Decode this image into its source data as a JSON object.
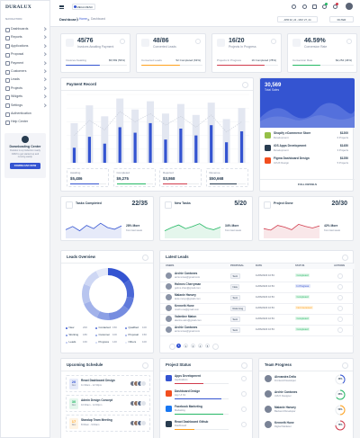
{
  "sidebar": {
    "logo": "DURALUX",
    "section": "NAVIGATION",
    "menu": [
      "Dashboards",
      "Reports",
      "Applications",
      "Proposal",
      "Payment",
      "Customers",
      "Leads",
      "Projects",
      "Widgets",
      "Settings",
      "Authentication",
      "Help Center"
    ],
    "promo": {
      "title": "Downloading Center",
      "text": [
        "Duralux is a production ready",
        "CRM to get started up and",
        "running easily."
      ],
      "button": "DOWNLOAD NOW"
    }
  },
  "header": {
    "menu_label": "MEGA MENU",
    "page": "Dashboard",
    "breadcrumb": [
      "Home",
      "Dashboard"
    ],
    "date_range": "APR 02, 24 - MAY 27, 24",
    "filter": "FILTER"
  },
  "stats": [
    {
      "value": "45/76",
      "label": "Invoices Awaiting Payment",
      "foot": "Invoices Awaiting",
      "amount": "$5,569 (56%)",
      "percent": 56,
      "color": "#3454d1"
    },
    {
      "value": "48/86",
      "label": "Converted Leads",
      "foot": "Converted Leads",
      "amount": "52 Completed (63%)",
      "percent": 63,
      "color": "#ffa21d"
    },
    {
      "value": "16/20",
      "label": "Projects In Progress",
      "foot": "Projects In Progress",
      "amount": "16 Completed (78%)",
      "percent": 78,
      "color": "#d13b4c"
    },
    {
      "value": "46.59%",
      "label": "Conversion Rate",
      "foot": "Conversion Rate",
      "amount": "$2,254 (46%)",
      "percent": 46,
      "color": "#25b865"
    }
  ],
  "payment_record": {
    "title": "Payment Record",
    "ylim": [
      0,
      100
    ],
    "bars": [
      22,
      38,
      28,
      52,
      44,
      58,
      34,
      50,
      40,
      55,
      30,
      46
    ],
    "background_bars": [
      58,
      84,
      68,
      94,
      78,
      90,
      72,
      86,
      70,
      88,
      64,
      80
    ],
    "line": [
      40,
      62,
      48,
      75,
      60,
      72,
      55,
      68,
      52,
      70,
      45,
      60
    ],
    "bar_color": "#3454d1",
    "background_color": "#e3e7f1",
    "line_color": "#c8cdd8",
    "summary": [
      {
        "label": "Awaiting",
        "value": "$5,486",
        "percent": 81,
        "color": "#3454d1"
      },
      {
        "label": "Completed",
        "value": "$9,275",
        "percent": 82,
        "color": "#25b865"
      },
      {
        "label": "Rejected",
        "value": "$3,868",
        "percent": 68,
        "color": "#d13b4c"
      },
      {
        "label": "Revenue",
        "value": "$50,668",
        "percent": 75,
        "color": "#283c50"
      }
    ]
  },
  "total_sales": {
    "value": "30,569",
    "label": "Total Sales",
    "link": "FULL DETAILS",
    "items": [
      {
        "title": "Shopify eCommerce Store",
        "sub": "Development",
        "amount": "$1200",
        "count": "6 Projects",
        "color": "#95bf47"
      },
      {
        "title": "iOS Apps Development",
        "sub": "Development",
        "amount": "$1450",
        "count": "3 Projects",
        "color": "#283c50"
      },
      {
        "title": "Figma Dashboard Design",
        "sub": "UI/UX Design",
        "amount": "$1250",
        "count": "5 Projects",
        "color": "#f24e1e"
      }
    ]
  },
  "progress": {
    "ylim": [
      0,
      100
    ],
    "cards": [
      {
        "title": "Tasks Completed",
        "value": "22/35",
        "change": "28% More",
        "note": "from last week",
        "color": "#3454d1",
        "curve": [
          40,
          55,
          35,
          60,
          45,
          70,
          50,
          42,
          58
        ]
      },
      {
        "title": "New Tasks",
        "value": "5/20",
        "change": "34% More",
        "note": "from last week",
        "color": "#25b865",
        "curve": [
          35,
          50,
          62,
          45,
          55,
          68,
          48,
          40,
          52
        ]
      },
      {
        "title": "Project Done",
        "value": "20/30",
        "change": "42% More",
        "note": "from last week",
        "color": "#d13b4c",
        "curve": [
          45,
          38,
          60,
          52,
          40,
          65,
          55,
          48,
          58
        ]
      }
    ]
  },
  "leads_overview": {
    "title": "Leads Overview",
    "segments": [
      {
        "name": "New",
        "value": 20,
        "value_label": "20K",
        "color": "#3454d1"
      },
      {
        "name": "Contacted",
        "value": 15,
        "value_label": "15K",
        "color": "#4a67d6"
      },
      {
        "name": "Qualified",
        "value": 10,
        "value_label": "10K",
        "color": "#607adb"
      },
      {
        "name": "Working",
        "value": 18,
        "value_label": "18K",
        "color": "#768de0"
      },
      {
        "name": "Customer",
        "value": 10,
        "value_label": "10K",
        "color": "#8ca0e5"
      },
      {
        "name": "Proposal",
        "value": 15,
        "value_label": "15K",
        "color": "#a2b2ea"
      },
      {
        "name": "Leads",
        "value": 16,
        "value_label": "16K",
        "color": "#b8c5ef"
      },
      {
        "name": "Progress",
        "value": 14,
        "value_label": "14K",
        "color": "#ced7f4"
      },
      {
        "name": "Others",
        "value": 10,
        "value_label": "10K",
        "color": "#e4e9f9"
      }
    ]
  },
  "latest_leads": {
    "title": "Latest Leads",
    "columns": [
      "USERS",
      "PROPOSAL",
      "DATE",
      "STATUS",
      "ACTIONS"
    ],
    "pages": [
      1,
      2,
      3,
      4,
      5
    ],
    "rows": [
      {
        "name": "Archie Cantones",
        "email": "arcie.tones@gmail.com",
        "proposal": "Sent",
        "date": "11/06/2023 10:53",
        "status": "Completed",
        "status_color": "#25b865"
      },
      {
        "name": "Holmes Cherryman",
        "email": "golms.chan@gmail.com",
        "proposal": "New",
        "date": "11/06/2023 10:53",
        "status": "In Progress",
        "status_color": "#3454d1"
      },
      {
        "name": "Malanie Hanvey",
        "email": "lanie.nveyn@gmail.com",
        "proposal": "Sent",
        "date": "11/06/2023 10:53",
        "status": "Completed",
        "status_color": "#25b865"
      },
      {
        "name": "Kenneth Hune",
        "email": "nneth.une@gmail.com",
        "proposal": "Returning",
        "date": "11/06/2023 10:53",
        "status": "Not Interested",
        "status_color": "#ffa21d"
      },
      {
        "name": "Valentine Maton",
        "email": "alenine.aton@gmail.com",
        "proposal": "Sent",
        "date": "11/06/2023 10:53",
        "status": "Completed",
        "status_color": "#25b865"
      },
      {
        "name": "Archie Cantones",
        "email": "arcie.tones@gmail.com",
        "proposal": "Sent",
        "date": "11/06/2023 10:53",
        "status": "Completed",
        "status_color": "#25b865"
      }
    ]
  },
  "schedule": {
    "title": "Upcoming Schedule",
    "items": [
      {
        "day": "20",
        "month": "Dec",
        "title": "React Dashboard Design",
        "time": "11:30am - 12:30pm",
        "color": "#3454d1"
      },
      {
        "day": "30",
        "month": "Dec",
        "title": "Admin Design Concept",
        "time": "10:00am - 12:00pm",
        "color": "#25b865"
      },
      {
        "day": "17",
        "month": "Dec",
        "title": "Standup Team Meeting",
        "time": "8:00am - 9:00am",
        "color": "#ffa21d"
      }
    ]
  },
  "project_status": {
    "title": "Project Status",
    "items": [
      {
        "name": "Apps Development",
        "sub": "Applications",
        "percent": 54,
        "color": "#d13b4c",
        "icon": "#3454d1"
      },
      {
        "name": "Dashboard Design",
        "sub": "App UI Kit",
        "percent": 86,
        "color": "#3454d1",
        "icon": "#f24e1e"
      },
      {
        "name": "Facebook Marketing",
        "sub": "Marketing",
        "percent": 90,
        "color": "#25b865",
        "icon": "#1877f2"
      },
      {
        "name": "React Dashboard Github",
        "sub": "Dashboard",
        "percent": 37,
        "color": "#ffa21d",
        "icon": "#283c50"
      }
    ]
  },
  "team_progress": {
    "title": "Team Progress",
    "members": [
      {
        "name": "Alexandra Della",
        "role": "Frontend Developer",
        "percent": 40,
        "percent_label": "40%",
        "color": "#3454d1"
      },
      {
        "name": "Archie Cantones",
        "role": "UI/UX Designer",
        "percent": 65,
        "percent_label": "65%",
        "color": "#25b865"
      },
      {
        "name": "Malanie Hanvey",
        "role": "Backend Developer",
        "percent": 50,
        "percent_label": "50%",
        "color": "#ffa21d"
      },
      {
        "name": "Kenneth Hune",
        "role": "Digital Marketer",
        "percent": 75,
        "percent_label": "75%",
        "color": "#d13b4c"
      }
    ]
  }
}
